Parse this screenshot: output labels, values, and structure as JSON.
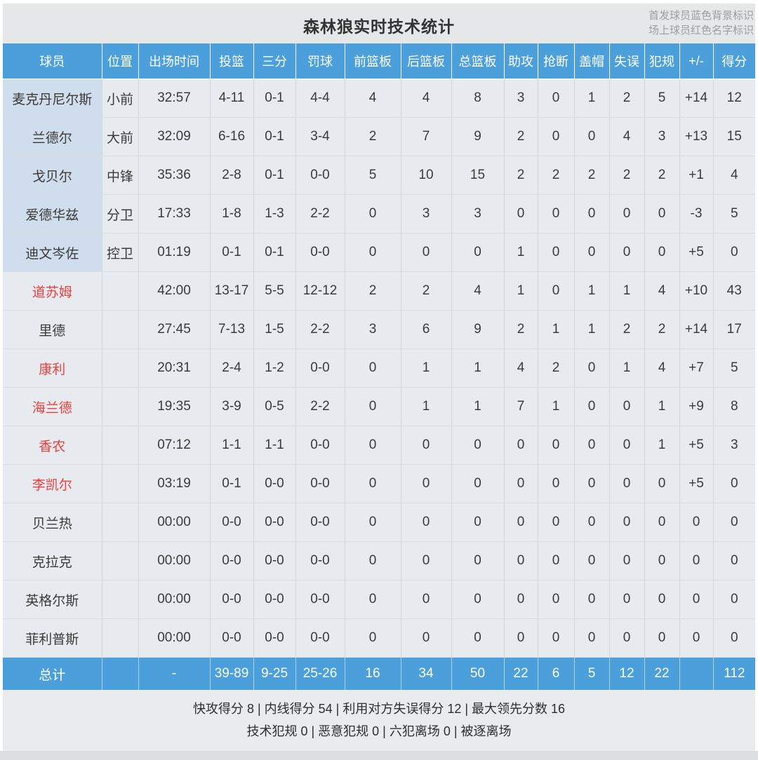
{
  "page": {
    "title": "森林狼实时技术统计",
    "legend_line1": "首发球员蓝色背景标识",
    "legend_line2": "场上球员红色名字标识"
  },
  "colors": {
    "header_blue": "#4ba0dc",
    "total_row_blue": "#4ba0dc",
    "starter_name_bg": "#cfddec",
    "body_cell_bg": "#e7ebef",
    "on_court_name_red": "#e8413d"
  },
  "table": {
    "columns": [
      "球员",
      "位置",
      "出场时间",
      "投篮",
      "三分",
      "罚球",
      "前篮板",
      "后篮板",
      "总篮板",
      "助攻",
      "抢断",
      "盖帽",
      "失误",
      "犯规",
      "+/-",
      "得分"
    ],
    "rows": [
      {
        "name": "麦克丹尼尔斯",
        "starter": true,
        "on_court": false,
        "cells": [
          "小前",
          "32:57",
          "4-11",
          "0-1",
          "4-4",
          "4",
          "4",
          "8",
          "3",
          "0",
          "1",
          "2",
          "5",
          "+14",
          "12"
        ]
      },
      {
        "name": "兰德尔",
        "starter": true,
        "on_court": false,
        "cells": [
          "大前",
          "32:09",
          "6-16",
          "0-1",
          "3-4",
          "2",
          "7",
          "9",
          "2",
          "0",
          "0",
          "4",
          "3",
          "+13",
          "15"
        ]
      },
      {
        "name": "戈贝尔",
        "starter": true,
        "on_court": false,
        "cells": [
          "中锋",
          "35:36",
          "2-8",
          "0-1",
          "0-0",
          "5",
          "10",
          "15",
          "2",
          "2",
          "2",
          "2",
          "2",
          "+1",
          "4"
        ]
      },
      {
        "name": "爱德华兹",
        "starter": true,
        "on_court": false,
        "cells": [
          "分卫",
          "17:33",
          "1-8",
          "1-3",
          "2-2",
          "0",
          "3",
          "3",
          "0",
          "0",
          "0",
          "0",
          "0",
          "-3",
          "5"
        ]
      },
      {
        "name": "迪文岑佐",
        "starter": true,
        "on_court": false,
        "cells": [
          "控卫",
          "01:19",
          "0-1",
          "0-1",
          "0-0",
          "0",
          "0",
          "0",
          "1",
          "0",
          "0",
          "0",
          "0",
          "+5",
          "0"
        ]
      },
      {
        "name": "道苏姆",
        "starter": false,
        "on_court": true,
        "cells": [
          "",
          "42:00",
          "13-17",
          "5-5",
          "12-12",
          "2",
          "2",
          "4",
          "1",
          "0",
          "1",
          "1",
          "4",
          "+10",
          "43"
        ]
      },
      {
        "name": "里德",
        "starter": false,
        "on_court": false,
        "cells": [
          "",
          "27:45",
          "7-13",
          "1-5",
          "2-2",
          "3",
          "6",
          "9",
          "2",
          "1",
          "1",
          "2",
          "2",
          "+14",
          "17"
        ]
      },
      {
        "name": "康利",
        "starter": false,
        "on_court": true,
        "cells": [
          "",
          "20:31",
          "2-4",
          "1-2",
          "0-0",
          "0",
          "1",
          "1",
          "4",
          "2",
          "0",
          "1",
          "4",
          "+7",
          "5"
        ]
      },
      {
        "name": "海兰德",
        "starter": false,
        "on_court": true,
        "cells": [
          "",
          "19:35",
          "3-9",
          "0-5",
          "2-2",
          "0",
          "1",
          "1",
          "7",
          "1",
          "0",
          "0",
          "1",
          "+9",
          "8"
        ]
      },
      {
        "name": "香农",
        "starter": false,
        "on_court": true,
        "cells": [
          "",
          "07:12",
          "1-1",
          "1-1",
          "0-0",
          "0",
          "0",
          "0",
          "0",
          "0",
          "0",
          "0",
          "1",
          "+5",
          "3"
        ]
      },
      {
        "name": "李凯尔",
        "starter": false,
        "on_court": true,
        "cells": [
          "",
          "03:19",
          "0-1",
          "0-0",
          "0-0",
          "0",
          "0",
          "0",
          "0",
          "0",
          "0",
          "0",
          "0",
          "+5",
          "0"
        ]
      },
      {
        "name": "贝兰热",
        "starter": false,
        "on_court": false,
        "cells": [
          "",
          "00:00",
          "0-0",
          "0-0",
          "0-0",
          "0",
          "0",
          "0",
          "0",
          "0",
          "0",
          "0",
          "0",
          "0",
          "0"
        ]
      },
      {
        "name": "克拉克",
        "starter": false,
        "on_court": false,
        "cells": [
          "",
          "00:00",
          "0-0",
          "0-0",
          "0-0",
          "0",
          "0",
          "0",
          "0",
          "0",
          "0",
          "0",
          "0",
          "0",
          "0"
        ]
      },
      {
        "name": "英格尔斯",
        "starter": false,
        "on_court": false,
        "cells": [
          "",
          "00:00",
          "0-0",
          "0-0",
          "0-0",
          "0",
          "0",
          "0",
          "0",
          "0",
          "0",
          "0",
          "0",
          "0",
          "0"
        ]
      },
      {
        "name": "菲利普斯",
        "starter": false,
        "on_court": false,
        "cells": [
          "",
          "00:00",
          "0-0",
          "0-0",
          "0-0",
          "0",
          "0",
          "0",
          "0",
          "0",
          "0",
          "0",
          "0",
          "0",
          "0"
        ]
      }
    ],
    "total": {
      "label": "总计",
      "cells": [
        "",
        "-",
        "39-89",
        "9-25",
        "25-26",
        "16",
        "34",
        "50",
        "22",
        "6",
        "5",
        "12",
        "22",
        "",
        "112"
      ]
    }
  },
  "footer": {
    "line1": "快攻得分 8 | 内线得分 54 | 利用对方失误得分 12 | 最大领先分数 16",
    "line2": "技术犯规 0 | 恶意犯规 0 | 六犯离场 0 | 被逐离场"
  }
}
